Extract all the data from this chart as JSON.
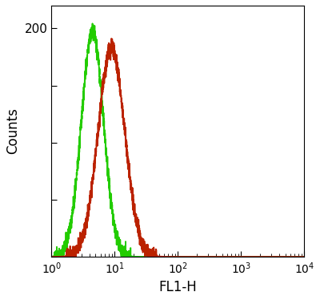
{
  "title": "",
  "xlabel": "FL1-H",
  "ylabel": "Counts",
  "xlim_log": [
    0,
    4
  ],
  "ylim": [
    0,
    220
  ],
  "yticks": [
    0,
    50,
    100,
    150,
    200
  ],
  "ytick_labels": [
    "",
    "",
    "",
    "",
    "200"
  ],
  "background_color": "#ffffff",
  "plot_bg_color": "#ffffff",
  "green_curve": {
    "color": "#22cc00",
    "peak_log": 0.65,
    "peak_count": 197,
    "sigma_log": 0.175
  },
  "red_curve": {
    "color": "#bb2200",
    "peak_log": 0.95,
    "peak_count": 183,
    "sigma_log": 0.21
  },
  "linewidth": 1.3,
  "noise_seed": 42,
  "noise_scale": 3.5
}
